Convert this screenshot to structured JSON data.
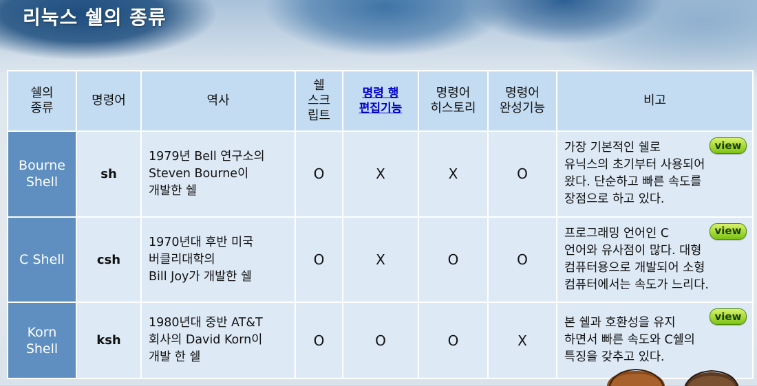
{
  "page": {
    "title": "리눅스 쉘의 종류"
  },
  "table": {
    "headers": {
      "kind": "쉘의\n종류",
      "command": "명령어",
      "history": "역사",
      "script": "쉘\n스크\n립트",
      "edit": "명령 행\n편집기능",
      "cmd_history": "명령어\n히스토리",
      "completion": "명령어\n완성기능",
      "note": "비고"
    },
    "rows": [
      {
        "name": "Bourne\nShell",
        "command": "sh",
        "history": "1979년 Bell 연구소의\nSteven Bourne이\n개발한 쉘",
        "script": "O",
        "edit": "X",
        "cmd_history": "X",
        "completion": "O",
        "note": "가장 기본적인 쉘로\n유닉스의 초기부터 사용되어\n왔다. 단순하고 빠른 속도를\n장점으로 하고 있다.",
        "view": "view"
      },
      {
        "name": "C Shell",
        "command": "csh",
        "history": "1970년대 후반 미국\n버클리대학의\nBill Joy가 개발한 쉘",
        "script": "O",
        "edit": "X",
        "cmd_history": "O",
        "completion": "O",
        "note": "프로그래밍 언어인 C\n언어와 유사점이 많다. 대형\n컴퓨터용으로 개발되어 소형\n컴퓨터에서는 속도가 느리다.",
        "view": "view"
      },
      {
        "name": "Korn\nShell",
        "command": "ksh",
        "history": "1980년대 중반 AT&T\n회사의 David Korn이\n개발 한 쉘",
        "script": "O",
        "edit": "O",
        "cmd_history": "O",
        "completion": "X",
        "note": "본 쉘과 호환성을 유지\n하면서 빠른 속도와 C쉘의\n특징을 갖추고 있다.",
        "view": "view"
      }
    ]
  },
  "colors": {
    "header_bg": "#c3dcf2",
    "name_cell_bg": "#5e8fc0",
    "body_bg": "#dde9f5",
    "view_button": "#7cc414"
  }
}
